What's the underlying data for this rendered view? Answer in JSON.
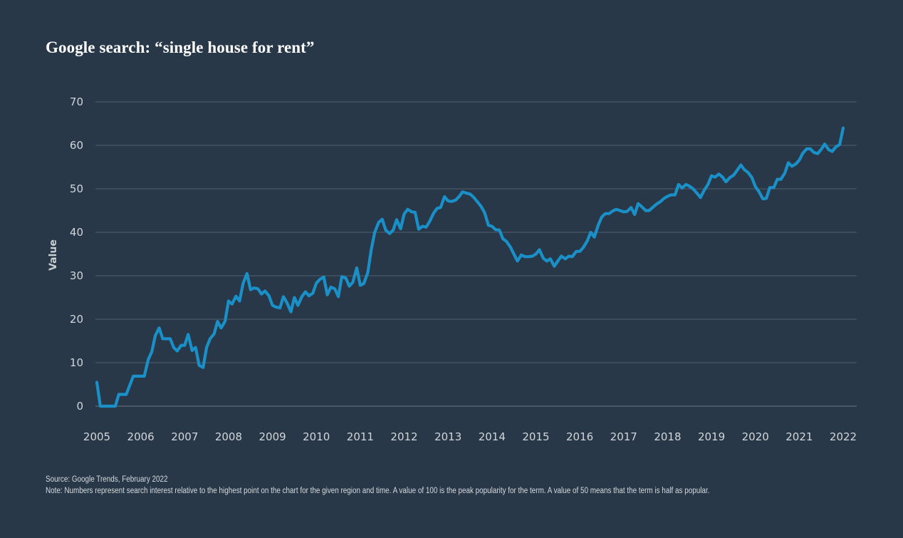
{
  "title": "Google search: “single house for rent”",
  "source": "Source: Google Trends, February 2022",
  "note": "Note: Numbers represent search interest relative to the highest point on the chart for the given region and time. A value of 100 is the peak popularity for the term. A value of 50 means that the term is half as popular.",
  "colors": {
    "background": "#283848",
    "line": "#1a90c8",
    "grid": "#51606e",
    "text": "#d2d6da"
  },
  "chart_data": {
    "type": "line",
    "title": "Google search: “single house for rent”",
    "xlabel": "",
    "ylabel": "Value",
    "ylim": [
      0,
      70
    ],
    "xlim": [
      2005,
      2022
    ],
    "yticks": [
      0,
      10,
      20,
      30,
      40,
      50,
      60,
      70
    ],
    "xticks": [
      2005,
      2006,
      2007,
      2008,
      2009,
      2010,
      2011,
      2012,
      2013,
      2014,
      2015,
      2016,
      2017,
      2018,
      2019,
      2020,
      2021,
      2022
    ],
    "grid": true,
    "series": [
      {
        "name": "single house for rent",
        "color": "#1a90c8",
        "x": [
          2005.0,
          2005.08,
          2005.17,
          2005.25,
          2005.33,
          2005.42,
          2005.5,
          2005.58,
          2005.67,
          2005.75,
          2005.83,
          2005.92,
          2006.0,
          2006.08,
          2006.17,
          2006.25,
          2006.33,
          2006.42,
          2006.5,
          2006.58,
          2006.67,
          2006.75,
          2006.83,
          2006.92,
          2007.0,
          2007.08,
          2007.17,
          2007.25,
          2007.33,
          2007.42,
          2007.5,
          2007.58,
          2007.67,
          2007.75,
          2007.83,
          2007.92,
          2008.0,
          2008.08,
          2008.17,
          2008.25,
          2008.33,
          2008.42,
          2008.5,
          2008.58,
          2008.67,
          2008.75,
          2008.83,
          2008.92,
          2009.0,
          2009.08,
          2009.17,
          2009.25,
          2009.33,
          2009.42,
          2009.5,
          2009.58,
          2009.67,
          2009.75,
          2009.83,
          2009.92,
          2010.0,
          2010.08,
          2010.17,
          2010.25,
          2010.33,
          2010.42,
          2010.5,
          2010.58,
          2010.67,
          2010.75,
          2010.83,
          2010.92,
          2011.0,
          2011.08,
          2011.17,
          2011.25,
          2011.33,
          2011.42,
          2011.5,
          2011.58,
          2011.67,
          2011.75,
          2011.83,
          2011.92,
          2012.0,
          2012.08,
          2012.17,
          2012.25,
          2012.33,
          2012.42,
          2012.5,
          2012.58,
          2012.67,
          2012.75,
          2012.83,
          2012.92,
          2013.0,
          2013.08,
          2013.17,
          2013.25,
          2013.33,
          2013.42,
          2013.5,
          2013.58,
          2013.67,
          2013.75,
          2013.83,
          2013.92,
          2014.0,
          2014.08,
          2014.17,
          2014.25,
          2014.33,
          2014.42,
          2014.5,
          2014.58,
          2014.67,
          2014.75,
          2014.83,
          2014.92,
          2015.0,
          2015.08,
          2015.17,
          2015.25,
          2015.33,
          2015.42,
          2015.5,
          2015.58,
          2015.67,
          2015.75,
          2015.83,
          2015.92,
          2016.0,
          2016.08,
          2016.17,
          2016.25,
          2016.33,
          2016.42,
          2016.5,
          2016.58,
          2016.67,
          2016.75,
          2016.83,
          2016.92,
          2017.0,
          2017.08,
          2017.17,
          2017.25,
          2017.33,
          2017.42,
          2017.5,
          2017.58,
          2017.67,
          2017.75,
          2017.83,
          2017.92,
          2018.0,
          2018.08,
          2018.17,
          2018.25,
          2018.33,
          2018.42,
          2018.5,
          2018.58,
          2018.67,
          2018.75,
          2018.83,
          2018.92,
          2019.0,
          2019.08,
          2019.17,
          2019.25,
          2019.33,
          2019.42,
          2019.5,
          2019.58,
          2019.67,
          2019.75,
          2019.83,
          2019.92,
          2020.0,
          2020.08,
          2020.17,
          2020.25,
          2020.33,
          2020.42,
          2020.5,
          2020.58,
          2020.67,
          2020.75,
          2020.83,
          2020.92,
          2021.0,
          2021.08,
          2021.17,
          2021.25,
          2021.33,
          2021.42,
          2021.5,
          2021.58,
          2021.67,
          2021.75,
          2021.83,
          2021.92,
          2022.0
        ],
        "y": [
          5.5,
          0,
          0,
          0,
          0,
          0,
          2.7,
          2.7,
          2.7,
          4.8,
          6.9,
          6.9,
          6.9,
          6.9,
          10.7,
          12.5,
          16.2,
          18.0,
          15.5,
          15.5,
          15.5,
          13.5,
          12.7,
          14.0,
          14.0,
          16.5,
          12.8,
          13.5,
          9.4,
          8.9,
          13.5,
          15.5,
          16.6,
          19.5,
          18.0,
          19.5,
          24.2,
          23.5,
          25.3,
          24.2,
          28.2,
          30.5,
          26.8,
          27.2,
          27.0,
          25.8,
          26.5,
          25.4,
          23.2,
          22.8,
          22.6,
          25.2,
          23.8,
          21.7,
          25.0,
          23.2,
          25.2,
          26.3,
          25.4,
          26.0,
          28.3,
          29.2,
          29.7,
          25.6,
          27.4,
          27.0,
          25.2,
          29.8,
          29.5,
          27.6,
          28.5,
          31.8,
          27.8,
          28.2,
          30.7,
          36.0,
          40.0,
          42.3,
          43.0,
          40.5,
          39.7,
          40.5,
          42.9,
          40.8,
          44.2,
          45.3,
          44.7,
          44.6,
          40.7,
          41.4,
          41.2,
          42.5,
          44.4,
          45.5,
          45.7,
          48.2,
          47.2,
          47.1,
          47.4,
          48.2,
          49.3,
          49.0,
          48.8,
          48.1,
          47.0,
          46.0,
          44.6,
          41.6,
          41.4,
          40.6,
          40.5,
          38.5,
          37.9,
          36.6,
          35.0,
          33.4,
          34.8,
          34.4,
          34.4,
          34.5,
          35.0,
          36.0,
          34.0,
          33.4,
          33.9,
          32.2,
          33.4,
          34.5,
          33.9,
          34.5,
          34.4,
          35.6,
          35.6,
          36.5,
          38.0,
          40.0,
          38.9,
          41.6,
          43.5,
          44.3,
          44.3,
          44.9,
          45.3,
          45.0,
          44.7,
          44.8,
          45.7,
          44.1,
          46.6,
          45.8,
          45.0,
          45.0,
          45.8,
          46.5,
          47.0,
          47.8,
          48.3,
          48.6,
          48.6,
          51.0,
          50.2,
          51.0,
          50.6,
          50.0,
          49.0,
          48.0,
          49.6,
          51.0,
          53.0,
          52.7,
          53.4,
          52.7,
          51.6,
          52.6,
          53.1,
          54.2,
          55.5,
          54.4,
          53.8,
          52.6,
          50.5,
          49.4,
          47.7,
          47.8,
          50.3,
          50.3,
          52.2,
          52.2,
          53.6,
          56.0,
          55.2,
          55.7,
          56.6,
          58.2,
          59.2,
          59.2,
          58.4,
          58.1,
          59.1,
          60.3,
          59.0,
          58.6,
          59.6,
          60.2,
          64.0
        ]
      }
    ]
  }
}
